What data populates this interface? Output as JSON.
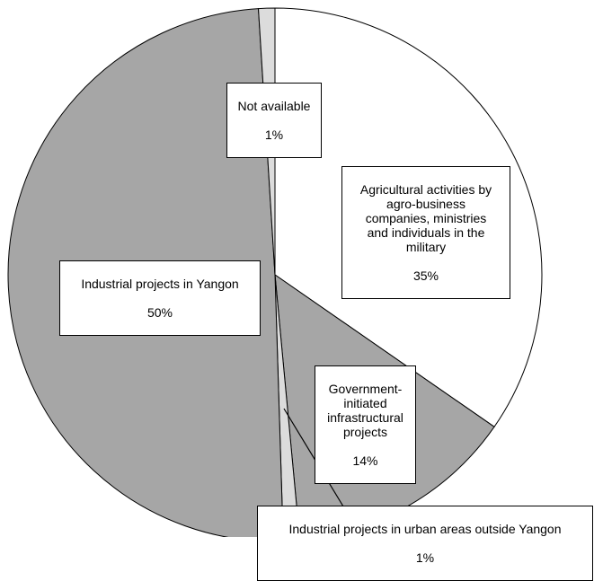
{
  "chart_data": {
    "type": "pie",
    "slices": [
      {
        "label": "Agricultural activities by agro-business companies, ministries and individuals in the military",
        "value": 35,
        "value_label": "35%",
        "color": "#ffffff"
      },
      {
        "label": "Government-initiated infrastructural projects",
        "value": 14,
        "value_label": "14%",
        "color": "#a6a6a6"
      },
      {
        "label": "Industrial projects in urban areas outside Yangon",
        "value": 1,
        "value_label": "1%",
        "color": "#dcdcdc"
      },
      {
        "label": "Industrial projects in Yangon",
        "value": 50,
        "value_label": "50%",
        "color": "#a6a6a6"
      },
      {
        "label": "Not available",
        "value": 1,
        "value_label": "1%",
        "color": "#dcdcdc"
      }
    ],
    "labels": {
      "agri": {
        "text": "Agricultural activities by\nagro-business\ncompanies, ministries\nand individuals in the\nmilitary",
        "pct": "35%"
      },
      "gov": {
        "text": "Government-\ninitiated\ninfrastructural\nprojects",
        "pct": "14%"
      },
      "urban": {
        "text": "Industrial projects in urban areas outside Yangon",
        "pct": "1%"
      },
      "yangon": {
        "text": "Industrial projects in Yangon",
        "pct": "50%"
      },
      "na": {
        "text": "Not available",
        "pct": "1%"
      }
    }
  }
}
